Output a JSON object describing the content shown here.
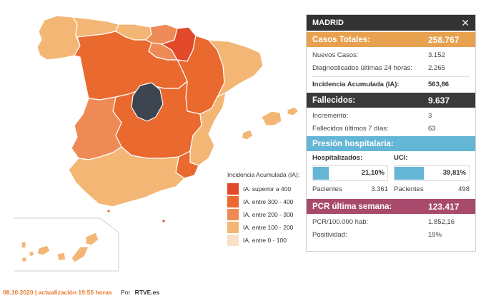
{
  "map": {
    "legend_title": "Incidencia Acumulada (IA):",
    "legend": [
      {
        "label": "IA. superior a 400",
        "color": "#e2482a"
      },
      {
        "label": "IA. entre 300 - 400",
        "color": "#e9692f"
      },
      {
        "label": "IA. entre 200 - 300",
        "color": "#ee8a55"
      },
      {
        "label": "IA. entre 100 - 200",
        "color": "#f3b674"
      },
      {
        "label": "IA. entre 0 - 100",
        "color": "#f9e0c6"
      }
    ],
    "selected_color": "#3d4650",
    "regions": [
      {
        "name": "Galicia",
        "color": "#f3b674"
      },
      {
        "name": "Asturias",
        "color": "#f3b674"
      },
      {
        "name": "Cantabria",
        "color": "#f3b674"
      },
      {
        "name": "País Vasco",
        "color": "#ee8a55"
      },
      {
        "name": "Navarra",
        "color": "#e2482a"
      },
      {
        "name": "La Rioja",
        "color": "#ee8a55"
      },
      {
        "name": "Aragón",
        "color": "#e9692f"
      },
      {
        "name": "Cataluña",
        "color": "#f3b674"
      },
      {
        "name": "Castilla y León",
        "color": "#e9692f"
      },
      {
        "name": "Madrid",
        "color": "#3d4650"
      },
      {
        "name": "Castilla-La Mancha",
        "color": "#e9692f"
      },
      {
        "name": "Comunidad Valenciana",
        "color": "#f3b674"
      },
      {
        "name": "Extremadura",
        "color": "#ee8a55"
      },
      {
        "name": "Andalucía",
        "color": "#f3b674"
      },
      {
        "name": "Murcia",
        "color": "#e9692f"
      },
      {
        "name": "Islas Baleares",
        "color": "#f3b674"
      },
      {
        "name": "Islas Canarias",
        "color": "#f3b674"
      },
      {
        "name": "Ceuta",
        "color": "#e9692f"
      },
      {
        "name": "Melilla",
        "color": "#e2482a"
      }
    ]
  },
  "footer": {
    "date": "08.10.2020 | actualización 19:55 horas",
    "by": "Por",
    "brand": "RTVE.es"
  },
  "panel": {
    "title": "MADRID",
    "close_icon": "close-icon",
    "casos": {
      "label": "Casos Totales:",
      "value": "258.767",
      "rows": [
        {
          "label": "Nuevos Casos:",
          "value": "3.152"
        },
        {
          "label": "Diagnosticados últimas 24 horas:",
          "value": "2.265"
        }
      ],
      "ia": {
        "label": "Incidencia Acumulada (IA):",
        "value": "563,86"
      }
    },
    "fallecidos": {
      "label": "Fallecidos:",
      "value": "9.637",
      "rows": [
        {
          "label": "Incremento:",
          "value": "3"
        },
        {
          "label": "Fallecidos últimos 7 días:",
          "value": "63"
        }
      ]
    },
    "presion": {
      "label": "Presión hospitalaria:",
      "hospitalizados": {
        "label": "Hospitalizados:",
        "pct": "21,10%",
        "fraction": 0.211,
        "pacientes_label": "Pacientes",
        "pacientes": "3.361"
      },
      "uci": {
        "label": "UCI:",
        "pct": "39,81%",
        "fraction": 0.3981,
        "pacientes_label": "Pacientes",
        "pacientes": "498"
      }
    },
    "pcr": {
      "label": "PCR última semana:",
      "value": "123.417",
      "rows": [
        {
          "label": "PCR/100.000 hab:",
          "value": "1.852,16"
        },
        {
          "label": "Positividad:",
          "value": "19%"
        }
      ]
    }
  }
}
